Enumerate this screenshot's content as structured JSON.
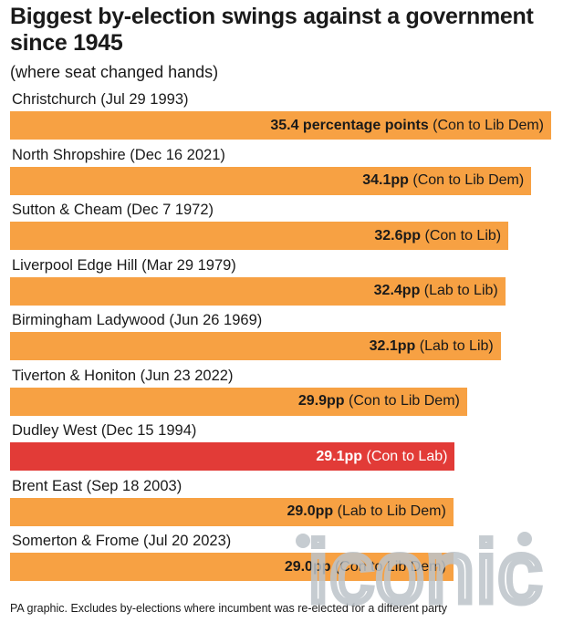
{
  "chart_data": {
    "type": "bar",
    "orientation": "horizontal",
    "title": "Biggest by-election swings against a government since 1945",
    "subtitle": "(where seat changed hands)",
    "value_unit": "pp",
    "categories": [
      "Christchurch (Jul 29 1993)",
      "North Shropshire (Dec 16 2021)",
      "Sutton & Cheam (Dec 7 1972)",
      "Liverpool Edge Hill (Mar 29 1979)",
      "Birmingham Ladywood (Jun 26 1969)",
      "Tiverton & Honiton (Jun 23 2022)",
      "Dudley West (Dec 15 1994)",
      "Brent East (Sep 18 2003)",
      "Somerton & Frome (Jul 20 2023)"
    ],
    "values": [
      35.4,
      34.1,
      32.6,
      32.4,
      32.1,
      29.9,
      29.1,
      29.0,
      29.0
    ],
    "value_labels": [
      "35.4 percentage points",
      "34.1pp",
      "32.6pp",
      "32.4pp",
      "32.1pp",
      "29.9pp",
      "29.1pp",
      "29.0pp",
      "29.0pp"
    ],
    "swings": [
      "(Con to Lib Dem)",
      "(Con to Lib Dem)",
      "(Con to Lib)",
      "(Lab to Lib)",
      "(Lab to Lib)",
      "(Con to Lib Dem)",
      "(Con to Lab)",
      "(Lab to Lib Dem)",
      "(Con to Lib Dem)"
    ],
    "highlight_index": 6,
    "bar_color": "#f7a143",
    "highlight_color": "#e23b37",
    "xlim": [
      0,
      35.4
    ],
    "grid": false,
    "legend": "none"
  },
  "footnote": "PA graphic. Excludes by-elections where incumbent was re-elected for a different party",
  "watermark": {
    "text": "iconic",
    "color": "#bcc3c9"
  }
}
